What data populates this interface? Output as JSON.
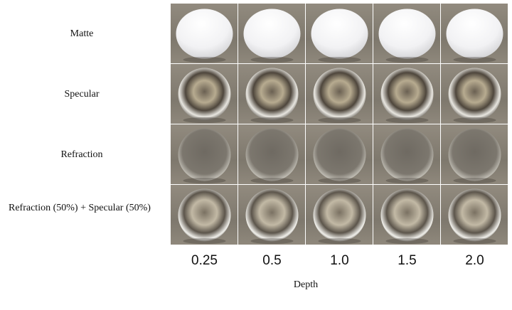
{
  "rows": [
    "Matte",
    "Specular",
    "Refraction",
    "Refraction  (50%)  +  Specular (50%)"
  ],
  "columns": [
    "0.25",
    "0.5",
    "1.0",
    "1.5",
    "2.0"
  ],
  "axis_label": "Depth"
}
